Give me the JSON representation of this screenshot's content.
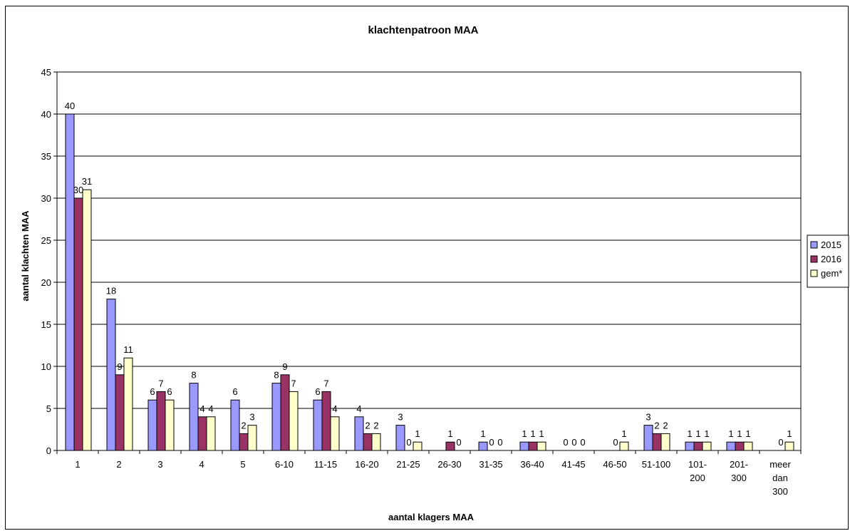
{
  "chart_data": {
    "type": "bar",
    "title": "klachtenpatroon MAA",
    "xlabel": "aantal klagers MAA",
    "ylabel": "aantal klachten MAA",
    "ylim": [
      0,
      45
    ],
    "yticks": [
      0,
      5,
      10,
      15,
      20,
      25,
      30,
      35,
      40,
      45
    ],
    "grid": true,
    "legend_position": "right",
    "categories": [
      [
        "1"
      ],
      [
        "2"
      ],
      [
        "3"
      ],
      [
        "4"
      ],
      [
        "5"
      ],
      [
        "6-10"
      ],
      [
        "11-15"
      ],
      [
        "16-20"
      ],
      [
        "21-25"
      ],
      [
        "26-30"
      ],
      [
        "31-35"
      ],
      [
        "36-40"
      ],
      [
        "41-45"
      ],
      [
        "46-50"
      ],
      [
        "51-100"
      ],
      [
        "101-",
        "200"
      ],
      [
        "201-",
        "300"
      ],
      [
        "meer",
        "dan",
        "300"
      ]
    ],
    "series": [
      {
        "name": "2015",
        "color": "#9999FF",
        "values": [
          40,
          18,
          6,
          8,
          6,
          8,
          6,
          4,
          3,
          null,
          1,
          1,
          0,
          null,
          3,
          1,
          1,
          null
        ],
        "labels": [
          "40",
          "18",
          "6",
          "8",
          "6",
          "8",
          "6",
          "4",
          "3",
          "",
          "1",
          "1",
          "0",
          "",
          "3",
          "1",
          "1",
          ""
        ]
      },
      {
        "name": "2016",
        "color": "#993366",
        "values": [
          30,
          9,
          7,
          4,
          2,
          9,
          7,
          2,
          0,
          1,
          0,
          1,
          0,
          0,
          2,
          1,
          1,
          0
        ],
        "labels": [
          "30",
          "9",
          "7",
          "4",
          "2",
          "9",
          "7",
          "2",
          "0",
          "1",
          "0",
          "1",
          "0",
          "0",
          "2",
          "1",
          "1",
          "0"
        ]
      },
      {
        "name": "gem*",
        "color": "#FFFFCC",
        "values": [
          31,
          11,
          6,
          4,
          3,
          7,
          4,
          2,
          1,
          0,
          0,
          1,
          0,
          1,
          2,
          1,
          1,
          1
        ],
        "labels": [
          "31",
          "11",
          "6",
          "4",
          "3",
          "7",
          "4",
          "2",
          "1",
          "0",
          "0",
          "1",
          "0",
          "1",
          "2",
          "1",
          "1",
          "1"
        ]
      }
    ]
  }
}
